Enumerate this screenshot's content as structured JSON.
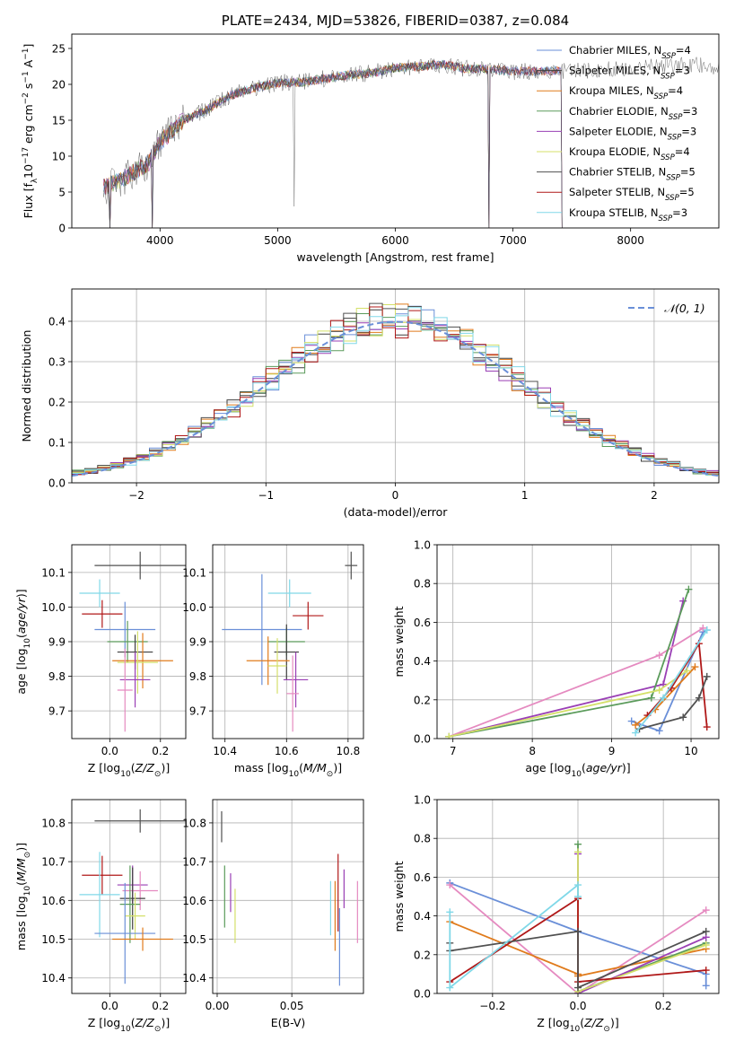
{
  "colors": {
    "chabrier_miles": "#6a8fd8",
    "salpeter_miles": "#3f3f3f",
    "kroupa_miles": "#e07b1c",
    "chabrier_elodie": "#5b9b5b",
    "salpeter_elodie": "#9a3fb5",
    "kroupa_elodie": "#d4e06a",
    "chabrier_stelib": "#505050",
    "salpeter_stelib": "#b01818",
    "kroupa_stelib": "#80d8e8",
    "pink": "#e58ac0",
    "normal": "#6a8fd8"
  },
  "chart_data": [
    {
      "id": "spectrum",
      "type": "line",
      "title": "PLATE=2434, MJD=53826, FIBERID=0387, z=0.084",
      "xlabel": "wavelength [Angstrom, rest frame]",
      "ylabel": "Flux [f_λ 10^-17 erg cm^-2 s^-1 A^-1]",
      "xlim": [
        3250,
        8750
      ],
      "ylim": [
        0,
        27
      ],
      "xticks": [
        4000,
        5000,
        6000,
        7000,
        8000
      ],
      "yticks": [
        0,
        5,
        10,
        15,
        20,
        25
      ],
      "legend_position": "top-right",
      "legend": [
        {
          "pre": "Chabrier MILES, N",
          "sub": "SSP",
          "post": "=4",
          "color": "chabrier_miles"
        },
        {
          "pre": "Salpeter MILES, N",
          "sub": "SSP",
          "post": "=3",
          "color": "salpeter_miles"
        },
        {
          "pre": "Kroupa MILES, N",
          "sub": "SSP",
          "post": "=4",
          "color": "kroupa_miles"
        },
        {
          "pre": "Chabrier ELODIE, N",
          "sub": "SSP",
          "post": "=3",
          "color": "chabrier_elodie"
        },
        {
          "pre": "Salpeter ELODIE, N",
          "sub": "SSP",
          "post": "=3",
          "color": "salpeter_elodie"
        },
        {
          "pre": "Kroupa ELODIE, N",
          "sub": "SSP",
          "post": "=4",
          "color": "kroupa_elodie"
        },
        {
          "pre": "Chabrier STELIB, N",
          "sub": "SSP",
          "post": "=5",
          "color": "chabrier_stelib"
        },
        {
          "pre": "Salpeter STELIB, N",
          "sub": "SSP",
          "post": "=5",
          "color": "salpeter_stelib"
        },
        {
          "pre": "Kroupa STELIB, N",
          "sub": "SSP",
          "post": "=3",
          "color": "kroupa_stelib"
        }
      ],
      "continuum_x": [
        3520,
        3700,
        3900,
        4000,
        4200,
        4400,
        4600,
        4800,
        5000,
        5200,
        5400,
        5600,
        5800,
        6000,
        6200,
        6400,
        6600,
        6800,
        7000,
        7200,
        7400,
        7600,
        7800,
        8000,
        8200,
        8400,
        8750
      ],
      "continuum_y": [
        5.5,
        7,
        9,
        12,
        15,
        16.5,
        18.5,
        19.5,
        20.2,
        20.3,
        20.8,
        21.3,
        21.6,
        22.3,
        22.5,
        22.8,
        22.2,
        22.1,
        21.8,
        21.8,
        22,
        21.9,
        22.1,
        22.3,
        22.4,
        22.6,
        22.6
      ],
      "model_end_x": [
        7420,
        7420,
        7420,
        6800,
        7420,
        6800,
        6800,
        7420,
        7420
      ],
      "dips": [
        {
          "x": 5140,
          "y": 3
        },
        {
          "x": 3930,
          "y": 0
        },
        {
          "x": 6800,
          "y": 0
        },
        {
          "x": 7420,
          "y": 0
        },
        {
          "x": 3570,
          "y": 0
        }
      ]
    },
    {
      "id": "residuals",
      "type": "step-histogram",
      "xlabel": "(data-model)/error",
      "ylabel": "Normed distribution",
      "xlim": [
        -2.5,
        2.5
      ],
      "ylim": [
        0,
        0.48
      ],
      "xticks": [
        -2,
        -1,
        0,
        1,
        2
      ],
      "yticks": [
        0.0,
        0.1,
        0.2,
        0.3,
        0.4
      ],
      "grid": true,
      "legend_position": "top-right",
      "normal_label": "𝒩(0, 1)",
      "bin_edges": [
        -2.5,
        -2.4,
        -2.3,
        -2.2,
        -2.1,
        -2.0,
        -1.9,
        -1.8,
        -1.7,
        -1.6,
        -1.5,
        -1.4,
        -1.3,
        -1.2,
        -1.1,
        -1.0,
        -0.9,
        -0.8,
        -0.7,
        -0.6,
        -0.5,
        -0.4,
        -0.3,
        -0.2,
        -0.1,
        0.0,
        0.1,
        0.2,
        0.3,
        0.4,
        0.5,
        0.6,
        0.7,
        0.8,
        0.9,
        1.0,
        1.1,
        1.2,
        1.3,
        1.4,
        1.5,
        1.6,
        1.7,
        1.8,
        1.9,
        2.0,
        2.1,
        2.2,
        2.3,
        2.4,
        2.5
      ],
      "hist_colors": [
        "chabrier_miles",
        "salpeter_miles",
        "kroupa_miles",
        "chabrier_elodie",
        "salpeter_elodie",
        "kroupa_elodie",
        "chabrier_stelib",
        "salpeter_stelib",
        "kroupa_stelib"
      ]
    },
    {
      "id": "z_age",
      "type": "errorbar",
      "xlabel": "Z [log10(Z/Z☉)]",
      "ylabel": "age [log10(age/yr)]",
      "xlim": [
        -0.15,
        0.3
      ],
      "ylim": [
        9.62,
        10.18
      ],
      "xticks": [
        0.0,
        0.2
      ],
      "yticks": [
        9.7,
        9.8,
        9.9,
        10.0,
        10.1
      ],
      "grid": true,
      "points": [
        {
          "x": 0.12,
          "y": 10.12,
          "xerr": 0.18,
          "yerr": 0.04,
          "color": "chabrier_stelib"
        },
        {
          "x": -0.04,
          "y": 10.04,
          "xerr": 0.08,
          "yerr": 0.04,
          "color": "kroupa_stelib"
        },
        {
          "x": -0.03,
          "y": 9.98,
          "xerr": 0.08,
          "yerr": 0.04,
          "color": "salpeter_stelib"
        },
        {
          "x": 0.06,
          "y": 9.935,
          "xerr": 0.12,
          "yerr": 0.08,
          "color": "chabrier_miles"
        },
        {
          "x": 0.07,
          "y": 9.9,
          "xerr": 0.08,
          "yerr": 0.06,
          "color": "chabrier_elodie"
        },
        {
          "x": 0.1,
          "y": 9.87,
          "xerr": 0.07,
          "yerr": 0.05,
          "color": "salpeter_miles"
        },
        {
          "x": 0.13,
          "y": 9.845,
          "xerr": 0.12,
          "yerr": 0.08,
          "color": "kroupa_miles"
        },
        {
          "x": 0.11,
          "y": 9.84,
          "xerr": 0.08,
          "yerr": 0.09,
          "color": "kroupa_elodie"
        },
        {
          "x": 0.1,
          "y": 9.79,
          "xerr": 0.06,
          "yerr": 0.08,
          "color": "salpeter_elodie"
        },
        {
          "x": 0.06,
          "y": 9.76,
          "xerr": 0.03,
          "yerr": 0.12,
          "color": "pink"
        }
      ]
    },
    {
      "id": "mass_age",
      "type": "errorbar",
      "xlabel": "mass [log10(M/M☉)]",
      "ylabel": "",
      "xlim": [
        10.36,
        10.85
      ],
      "ylim": [
        9.62,
        10.18
      ],
      "xticks": [
        10.4,
        10.6,
        10.8
      ],
      "yticks": [
        9.7,
        9.8,
        9.9,
        10.0,
        10.1
      ],
      "grid": true,
      "points": [
        {
          "x": 10.81,
          "y": 10.12,
          "xerr": 0.02,
          "yerr": 0.04,
          "color": "chabrier_stelib"
        },
        {
          "x": 10.61,
          "y": 10.04,
          "xerr": 0.07,
          "yerr": 0.04,
          "color": "kroupa_stelib"
        },
        {
          "x": 10.67,
          "y": 9.975,
          "xerr": 0.05,
          "yerr": 0.04,
          "color": "salpeter_stelib"
        },
        {
          "x": 10.52,
          "y": 9.935,
          "xerr": 0.13,
          "yerr": 0.16,
          "color": "chabrier_miles"
        },
        {
          "x": 10.6,
          "y": 9.9,
          "xerr": 0.06,
          "yerr": 0.04,
          "color": "chabrier_elodie"
        },
        {
          "x": 10.6,
          "y": 9.87,
          "xerr": 0.04,
          "yerr": 0.08,
          "color": "salpeter_miles"
        },
        {
          "x": 10.54,
          "y": 9.845,
          "xerr": 0.07,
          "yerr": 0.07,
          "color": "kroupa_miles"
        },
        {
          "x": 10.57,
          "y": 9.83,
          "xerr": 0.03,
          "yerr": 0.08,
          "color": "kroupa_elodie"
        },
        {
          "x": 10.63,
          "y": 9.79,
          "xerr": 0.04,
          "yerr": 0.08,
          "color": "salpeter_elodie"
        },
        {
          "x": 10.62,
          "y": 9.75,
          "xerr": 0.02,
          "yerr": 0.11,
          "color": "pink"
        }
      ]
    },
    {
      "id": "age_weight",
      "type": "line",
      "xlabel": "age [log10(age/yr)]",
      "ylabel": "mass weight",
      "xlim": [
        6.8,
        10.35
      ],
      "ylim": [
        0,
        1
      ],
      "xticks": [
        7,
        8,
        9,
        10
      ],
      "yticks": [
        0.0,
        0.2,
        0.4,
        0.6,
        0.8,
        1.0
      ],
      "grid": true,
      "series": [
        {
          "color": "chabrier_miles",
          "x": [
            9.25,
            9.6,
            10.15,
            10.2
          ],
          "y": [
            0.09,
            0.04,
            0.55,
            0.56
          ]
        },
        {
          "color": "salpeter_elodie",
          "x": [
            6.95,
            9.65,
            9.9
          ],
          "y": [
            0.01,
            0.28,
            0.71
          ]
        },
        {
          "color": "pink",
          "x": [
            6.95,
            9.6,
            10.15
          ],
          "y": [
            0.01,
            0.43,
            0.57
          ]
        },
        {
          "color": "chabrier_elodie",
          "x": [
            6.95,
            9.5,
            9.97
          ],
          "y": [
            0.01,
            0.21,
            0.77
          ]
        },
        {
          "color": "kroupa_miles",
          "x": [
            9.3,
            9.55,
            10.05
          ],
          "y": [
            0.07,
            0.15,
            0.37
          ]
        },
        {
          "color": "kroupa_elodie",
          "x": [
            6.95,
            9.6,
            9.95
          ],
          "y": [
            0.01,
            0.25,
            0.35
          ]
        },
        {
          "color": "salpeter_stelib",
          "x": [
            9.45,
            9.75,
            10.1,
            10.2
          ],
          "y": [
            0.12,
            0.26,
            0.49,
            0.06
          ]
        },
        {
          "color": "chabrier_stelib",
          "x": [
            9.35,
            9.9,
            10.1,
            10.2
          ],
          "y": [
            0.05,
            0.11,
            0.21,
            0.32
          ]
        },
        {
          "color": "kroupa_stelib",
          "x": [
            9.3,
            9.65,
            10.2
          ],
          "y": [
            0.03,
            0.21,
            0.56
          ]
        }
      ]
    },
    {
      "id": "z_mass",
      "type": "errorbar",
      "xlabel": "Z [log10(Z/Z☉)]",
      "ylabel": "mass [log10(M/M☉)]",
      "xlim": [
        -0.15,
        0.3
      ],
      "ylim": [
        10.36,
        10.86
      ],
      "xticks": [
        0.0,
        0.2
      ],
      "yticks": [
        10.4,
        10.5,
        10.6,
        10.7,
        10.8
      ],
      "grid": true,
      "points": [
        {
          "x": 0.12,
          "y": 10.805,
          "xerr": 0.18,
          "yerr": 0.03,
          "color": "chabrier_stelib"
        },
        {
          "x": -0.03,
          "y": 10.665,
          "xerr": 0.08,
          "yerr": 0.05,
          "color": "salpeter_stelib"
        },
        {
          "x": 0.09,
          "y": 10.64,
          "xerr": 0.06,
          "yerr": 0.05,
          "color": "salpeter_elodie"
        },
        {
          "x": 0.12,
          "y": 10.625,
          "xerr": 0.07,
          "yerr": 0.05,
          "color": "pink"
        },
        {
          "x": -0.04,
          "y": 10.615,
          "xerr": 0.08,
          "yerr": 0.11,
          "color": "kroupa_stelib"
        },
        {
          "x": 0.09,
          "y": 10.605,
          "xerr": 0.05,
          "yerr": 0.08,
          "color": "salpeter_miles"
        },
        {
          "x": 0.08,
          "y": 10.59,
          "xerr": 0.04,
          "yerr": 0.1,
          "color": "chabrier_elodie"
        },
        {
          "x": 0.1,
          "y": 10.56,
          "xerr": 0.04,
          "yerr": 0.06,
          "color": "kroupa_elodie"
        },
        {
          "x": 0.06,
          "y": 10.515,
          "xerr": 0.12,
          "yerr": 0.13,
          "color": "chabrier_miles"
        },
        {
          "x": 0.13,
          "y": 10.5,
          "xerr": 0.12,
          "yerr": 0.03,
          "color": "kroupa_miles"
        }
      ]
    },
    {
      "id": "ebv_mass",
      "type": "errorbar",
      "xlabel": "E(B-V)",
      "ylabel": "",
      "xlim": [
        -0.003,
        0.098
      ],
      "ylim": [
        10.36,
        10.86
      ],
      "xticks": [
        0.0,
        0.05
      ],
      "yticks": [
        10.4,
        10.5,
        10.6,
        10.7,
        10.8
      ],
      "grid": true,
      "points": [
        {
          "x": 0.003,
          "y": 10.79,
          "xerr": 0,
          "yerr": 0.04,
          "color": "chabrier_stelib"
        },
        {
          "x": 0.005,
          "y": 10.61,
          "xerr": 0,
          "yerr": 0.08,
          "color": "chabrier_elodie"
        },
        {
          "x": 0.009,
          "y": 10.62,
          "xerr": 0,
          "yerr": 0.05,
          "color": "salpeter_elodie"
        },
        {
          "x": 0.012,
          "y": 10.56,
          "xerr": 0,
          "yerr": 0.07,
          "color": "kroupa_elodie"
        },
        {
          "x": 0.076,
          "y": 10.58,
          "xerr": 0,
          "yerr": 0.07,
          "color": "kroupa_stelib"
        },
        {
          "x": 0.079,
          "y": 10.56,
          "xerr": 0,
          "yerr": 0.09,
          "color": "kroupa_miles"
        },
        {
          "x": 0.081,
          "y": 10.62,
          "xerr": 0,
          "yerr": 0.1,
          "color": "salpeter_stelib"
        },
        {
          "x": 0.082,
          "y": 10.48,
          "xerr": 0,
          "yerr": 0.1,
          "color": "chabrier_miles"
        },
        {
          "x": 0.085,
          "y": 10.63,
          "xerr": 0,
          "yerr": 0.05,
          "color": "salpeter_elodie"
        },
        {
          "x": 0.094,
          "y": 10.57,
          "xerr": 0,
          "yerr": 0.08,
          "color": "pink"
        }
      ]
    },
    {
      "id": "z_weight",
      "type": "line",
      "xlabel": "Z [log10(Z/Z☉)]",
      "ylabel": "mass weight",
      "xlim": [
        -0.33,
        0.33
      ],
      "ylim": [
        0,
        1
      ],
      "xticks": [
        -0.2,
        0.0,
        0.2
      ],
      "yticks": [
        0.0,
        0.2,
        0.4,
        0.6,
        0.8,
        1.0
      ],
      "grid": true,
      "series": [
        {
          "color": "chabrier_miles",
          "x": [
            -0.3,
            0.0,
            0.3,
            0.3
          ],
          "y": [
            0.57,
            0.32,
            0.1,
            0.04
          ]
        },
        {
          "color": "pink",
          "x": [
            -0.3,
            0.0,
            0.3
          ],
          "y": [
            0.56,
            0.0,
            0.43
          ]
        },
        {
          "color": "kroupa_miles",
          "x": [
            -0.3,
            0.0,
            0.0,
            0.3
          ],
          "y": [
            0.37,
            0.1,
            0.09,
            0.23
          ]
        },
        {
          "color": "chabrier_elodie",
          "x": [
            0.0,
            0.0,
            0.3
          ],
          "y": [
            0.77,
            0.01,
            0.26
          ]
        },
        {
          "color": "salpeter_elodie",
          "x": [
            0.0,
            0.0,
            0.3
          ],
          "y": [
            0.72,
            0.0,
            0.29
          ]
        },
        {
          "color": "kroupa_elodie",
          "x": [
            0.0,
            0.0,
            0.3
          ],
          "y": [
            0.73,
            0.01,
            0.25
          ]
        },
        {
          "color": "salpeter_stelib",
          "x": [
            -0.3,
            0.0,
            0.0,
            0.3
          ],
          "y": [
            0.06,
            0.49,
            0.06,
            0.12
          ]
        },
        {
          "color": "chabrier_stelib",
          "x": [
            -0.3,
            -0.3,
            0.0,
            0.0,
            0.3
          ],
          "y": [
            0.26,
            0.22,
            0.32,
            0.03,
            0.32
          ]
        },
        {
          "color": "kroupa_stelib",
          "x": [
            -0.3,
            -0.3,
            0.0,
            0.0
          ],
          "y": [
            0.42,
            0.03,
            0.56,
            0.5
          ]
        }
      ]
    }
  ]
}
